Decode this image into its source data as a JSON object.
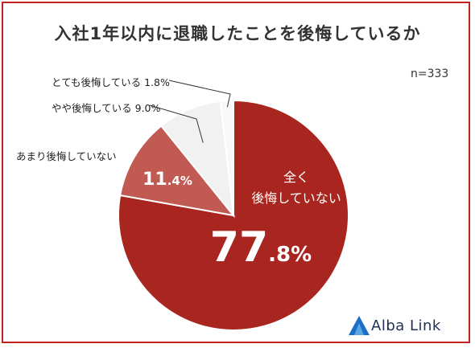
{
  "chart_data": {
    "type": "pie",
    "title": "入社1年以内に退職したことを後悔しているか",
    "sample_size": "n=333",
    "slices": [
      {
        "label_lines": [
          "全く",
          "後悔していない"
        ],
        "value": 77.8,
        "value_int": "77",
        "value_dec": ".8%",
        "color": "#a8261f"
      },
      {
        "label": "あまり後悔していない",
        "value": 11.4,
        "value_int": "11",
        "value_dec": ".4%",
        "color": "#c05a52"
      },
      {
        "label": "やや後悔している",
        "value": 9.0,
        "value_text": "9.0%",
        "color": "#f1f1f1"
      },
      {
        "label": "とても後悔している",
        "value": 1.8,
        "value_text": "1.8%",
        "color": "#f8f8f8"
      }
    ]
  },
  "logo": {
    "text": "Alba Link"
  },
  "colors": {
    "border": "#c5221f",
    "logo_blue": "#1d6ec7"
  }
}
